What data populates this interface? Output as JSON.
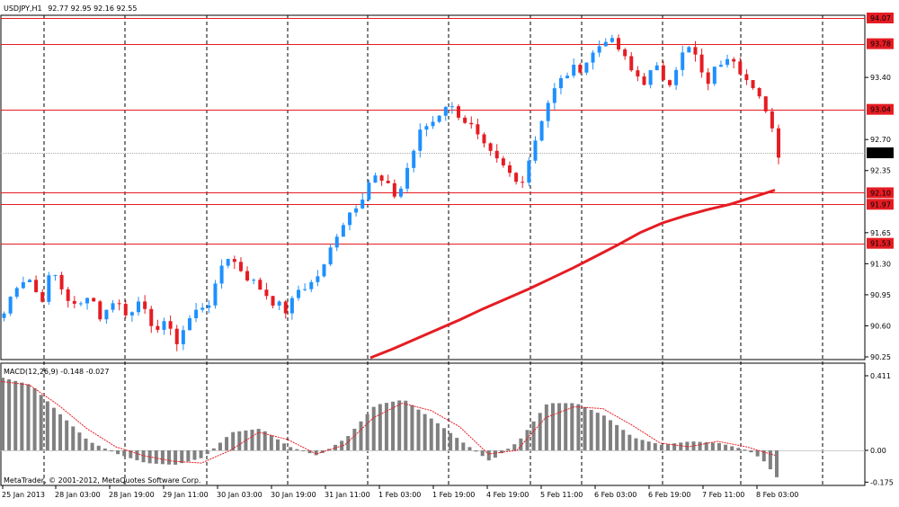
{
  "header": {
    "symbol": "USDJPY,H1",
    "ohlc": "92.77 92.95 92.16 92.55"
  },
  "footer": {
    "copyright": "MetaTrader, © 2001-2012, MetaQuotes Software Corp."
  },
  "chart_data": [
    {
      "type": "candlestick",
      "symbol": "USDJPY",
      "timeframe": "H1",
      "ylim": [
        90.25,
        94.07
      ],
      "y_ticks": [
        "94.07",
        "93.78",
        "93.40",
        "93.04",
        "92.70",
        "92.55",
        "92.35",
        "92.10",
        "91.97",
        "91.65",
        "91.53",
        "91.30",
        "90.95",
        "90.60",
        "90.25"
      ],
      "x_ticks": [
        "25 Jan 2013",
        "28 Jan 03:00",
        "28 Jan 19:00",
        "29 Jan 11:00",
        "30 Jan 03:00",
        "30 Jan 19:00",
        "31 Jan 11:00",
        "1 Feb 03:00",
        "1 Feb 19:00",
        "4 Feb 19:00",
        "5 Feb 11:00",
        "6 Feb 03:00",
        "6 Feb 19:00",
        "7 Feb 11:00",
        "8 Feb 03:00"
      ],
      "horizontal_levels": [
        94.07,
        93.78,
        93.04,
        92.1,
        91.97,
        91.53
      ],
      "current_price": 92.55,
      "colors": {
        "bull": "#1e90ff",
        "bear": "#e51c23",
        "level": "#e51c23",
        "ma": "#e51c23"
      },
      "moving_average": [
        [
          126,
          90.24
        ],
        [
          148,
          90.34
        ],
        [
          170,
          90.45
        ],
        [
          192,
          90.56
        ],
        [
          214,
          90.67
        ],
        [
          236,
          90.79
        ],
        [
          258,
          90.9
        ],
        [
          280,
          91.01
        ],
        [
          302,
          91.13
        ],
        [
          324,
          91.25
        ],
        [
          346,
          91.38
        ],
        [
          368,
          91.51
        ],
        [
          390,
          91.65
        ],
        [
          412,
          91.76
        ],
        [
          434,
          91.84
        ],
        [
          456,
          91.91
        ],
        [
          478,
          91.97
        ],
        [
          500,
          92.05
        ],
        [
          522,
          92.13
        ]
      ],
      "waypoints": [
        [
          0,
          90.74
        ],
        [
          8,
          91.06
        ],
        [
          17,
          91.16
        ],
        [
          26,
          90.87
        ],
        [
          34,
          91.23
        ],
        [
          43,
          90.95
        ],
        [
          52,
          90.77
        ],
        [
          60,
          91.0
        ],
        [
          69,
          90.66
        ],
        [
          78,
          90.93
        ],
        [
          87,
          90.69
        ],
        [
          95,
          90.93
        ],
        [
          104,
          90.54
        ],
        [
          113,
          90.66
        ],
        [
          121,
          90.4
        ],
        [
          130,
          90.66
        ],
        [
          139,
          90.82
        ],
        [
          147,
          90.89
        ],
        [
          156,
          91.42
        ],
        [
          165,
          91.28
        ],
        [
          173,
          91.13
        ],
        [
          182,
          91.01
        ],
        [
          191,
          90.86
        ],
        [
          200,
          90.76
        ],
        [
          208,
          91.01
        ],
        [
          217,
          91.08
        ],
        [
          226,
          91.26
        ],
        [
          234,
          91.62
        ],
        [
          243,
          91.86
        ],
        [
          252,
          92.04
        ],
        [
          260,
          92.3
        ],
        [
          269,
          92.19
        ],
        [
          278,
          92.04
        ],
        [
          286,
          92.44
        ],
        [
          295,
          92.82
        ],
        [
          304,
          92.92
        ],
        [
          312,
          93.1
        ],
        [
          321,
          92.99
        ],
        [
          330,
          92.84
        ],
        [
          338,
          92.62
        ],
        [
          347,
          92.46
        ],
        [
          356,
          92.33
        ],
        [
          364,
          92.17
        ],
        [
          373,
          92.59
        ],
        [
          382,
          93.06
        ],
        [
          391,
          93.32
        ],
        [
          399,
          93.47
        ],
        [
          408,
          93.52
        ],
        [
          417,
          93.69
        ],
        [
          425,
          93.85
        ],
        [
          434,
          93.72
        ],
        [
          443,
          93.47
        ],
        [
          452,
          93.36
        ],
        [
          460,
          93.51
        ],
        [
          469,
          93.33
        ],
        [
          478,
          93.64
        ],
        [
          486,
          93.75
        ],
        [
          495,
          93.3
        ],
        [
          504,
          93.54
        ],
        [
          513,
          93.7
        ],
        [
          521,
          93.46
        ],
        [
          530,
          93.21
        ],
        [
          539,
          93.04
        ],
        [
          547,
          92.55
        ]
      ]
    },
    {
      "type": "histogram",
      "title": "MACD(12,26,9) -0.148 -0.027",
      "ylim": [
        -0.175,
        0.411
      ],
      "y_ticks": [
        "0.411",
        "0.00",
        "-0.175"
      ],
      "signal": [
        [
          0,
          0.38
        ],
        [
          20,
          0.36
        ],
        [
          40,
          0.25
        ],
        [
          60,
          0.12
        ],
        [
          80,
          0.02
        ],
        [
          100,
          -0.03
        ],
        [
          120,
          -0.06
        ],
        [
          140,
          -0.07
        ],
        [
          160,
          0.0
        ],
        [
          180,
          0.1
        ],
        [
          200,
          0.06
        ],
        [
          220,
          -0.02
        ],
        [
          240,
          0.03
        ],
        [
          260,
          0.18
        ],
        [
          280,
          0.26
        ],
        [
          300,
          0.22
        ],
        [
          320,
          0.13
        ],
        [
          340,
          -0.02
        ],
        [
          360,
          0.0
        ],
        [
          380,
          0.18
        ],
        [
          400,
          0.24
        ],
        [
          420,
          0.23
        ],
        [
          440,
          0.14
        ],
        [
          460,
          0.04
        ],
        [
          480,
          0.02
        ],
        [
          500,
          0.05
        ],
        [
          520,
          0.02
        ],
        [
          540,
          -0.027
        ]
      ],
      "histogram": [
        [
          0,
          0.4
        ],
        [
          20,
          0.36
        ],
        [
          40,
          0.2
        ],
        [
          60,
          0.05
        ],
        [
          80,
          -0.02
        ],
        [
          100,
          -0.07
        ],
        [
          120,
          -0.08
        ],
        [
          140,
          -0.04
        ],
        [
          160,
          0.1
        ],
        [
          180,
          0.12
        ],
        [
          200,
          0.02
        ],
        [
          220,
          -0.03
        ],
        [
          240,
          0.07
        ],
        [
          260,
          0.25
        ],
        [
          280,
          0.28
        ],
        [
          300,
          0.17
        ],
        [
          320,
          0.05
        ],
        [
          340,
          -0.06
        ],
        [
          360,
          0.05
        ],
        [
          380,
          0.26
        ],
        [
          400,
          0.26
        ],
        [
          420,
          0.19
        ],
        [
          440,
          0.07
        ],
        [
          460,
          0.03
        ],
        [
          480,
          0.05
        ],
        [
          500,
          0.04
        ],
        [
          520,
          0.0
        ],
        [
          530,
          -0.05
        ],
        [
          540,
          -0.148
        ]
      ]
    }
  ]
}
